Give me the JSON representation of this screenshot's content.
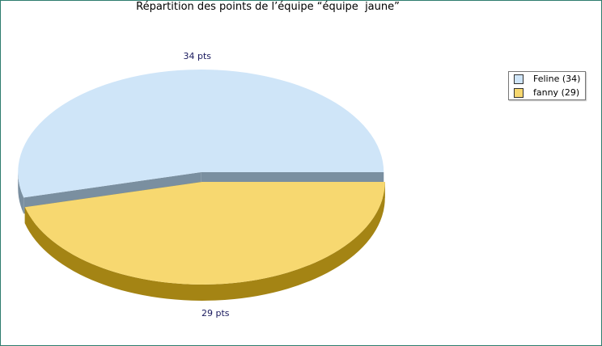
{
  "chart_data": {
    "type": "pie",
    "title": "Répartition des points de l’équipe “équipe  jaune”",
    "slices": [
      {
        "label": "Feline",
        "value": 34,
        "data_label": "34 pts",
        "legend": "Feline (34)",
        "color": "#cfe5f8",
        "side_color": "#7a8fa0"
      },
      {
        "label": "fanny",
        "value": 29,
        "data_label": "29 pts",
        "legend": "fanny (29)",
        "color": "#f7d870",
        "side_color": "#a48414"
      }
    ],
    "exploded": true,
    "legend_position": "top-right"
  },
  "colors": {
    "frame_border": "#2e7d6e",
    "label_text": "#1a1a5e"
  }
}
